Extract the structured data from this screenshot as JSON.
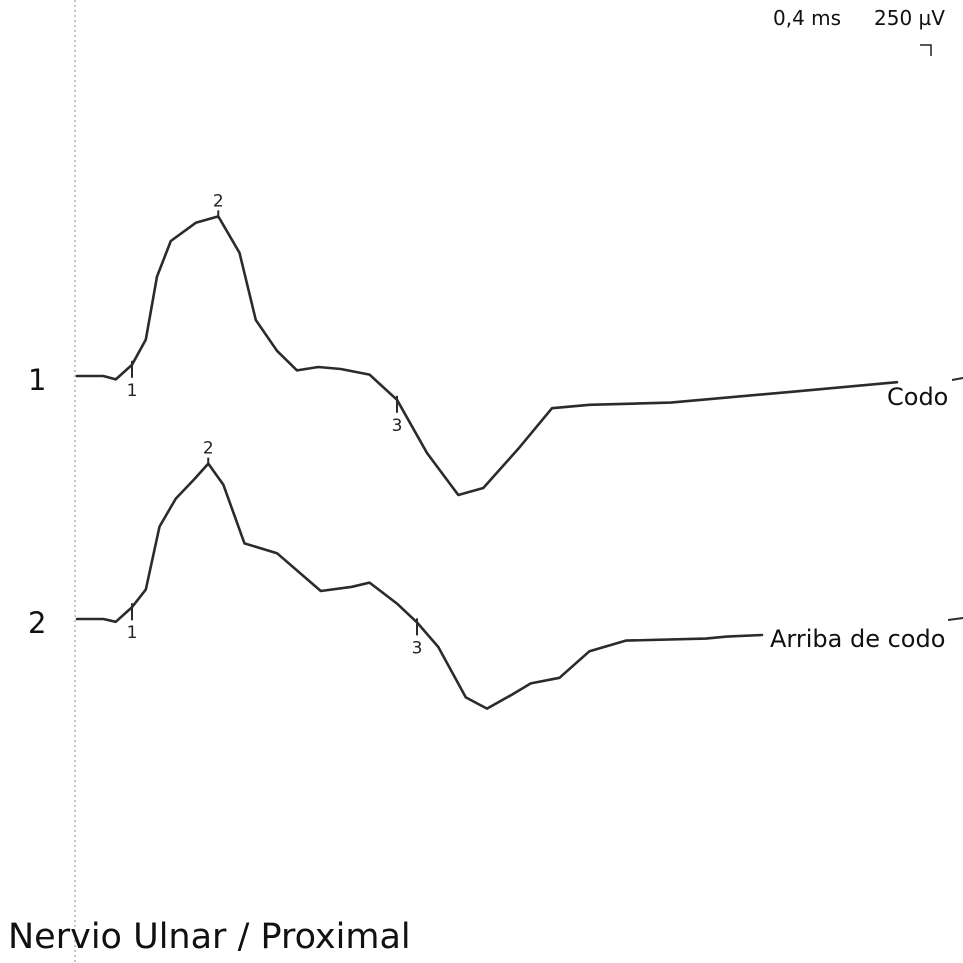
{
  "title": "Nervio Ulnar / Proximal",
  "scale": {
    "time": "0,4 ms",
    "amplitude": "250 µV"
  },
  "chart_data": {
    "type": "line",
    "title": "Nervio Ulnar / Proximal",
    "xlabel": "",
    "ylabel": "",
    "grid": false,
    "x_unit": "ms",
    "y_unit": "µV",
    "ms_per_division": 0.4,
    "uV_per_division": 250,
    "series": [
      {
        "number": "1",
        "name": "Codo",
        "points": [
          [
            0.0,
            0
          ],
          [
            0.21,
            0
          ],
          [
            0.31,
            12
          ],
          [
            0.44,
            -40
          ],
          [
            0.55,
            -130
          ],
          [
            0.64,
            -355
          ],
          [
            0.75,
            -482
          ],
          [
            0.95,
            -547
          ],
          [
            1.13,
            -570
          ],
          [
            1.3,
            -440
          ],
          [
            1.43,
            -200
          ],
          [
            1.6,
            -90
          ],
          [
            1.76,
            -20
          ],
          [
            1.93,
            -32
          ],
          [
            2.11,
            -25
          ],
          [
            2.34,
            -5
          ],
          [
            2.56,
            85
          ],
          [
            2.8,
            275
          ],
          [
            3.05,
            425
          ],
          [
            3.25,
            400
          ],
          [
            3.53,
            260
          ],
          [
            3.8,
            115
          ],
          [
            4.1,
            103
          ],
          [
            4.75,
            95
          ],
          [
            5.75,
            55
          ],
          [
            6.56,
            22
          ]
        ],
        "markers": [
          {
            "label": "1",
            "x": 0.44,
            "y": -40
          },
          {
            "label": "2",
            "x": 1.13,
            "y": -570
          },
          {
            "label": "3",
            "x": 2.56,
            "y": 85
          }
        ]
      },
      {
        "number": "2",
        "name": "Arriba de codo",
        "points": [
          [
            0.0,
            0
          ],
          [
            0.21,
            0
          ],
          [
            0.31,
            10
          ],
          [
            0.44,
            -42
          ],
          [
            0.55,
            -105
          ],
          [
            0.66,
            -330
          ],
          [
            0.79,
            -430
          ],
          [
            0.94,
            -500
          ],
          [
            1.05,
            -555
          ],
          [
            1.17,
            -480
          ],
          [
            1.34,
            -270
          ],
          [
            1.6,
            -235
          ],
          [
            1.95,
            -100
          ],
          [
            2.2,
            -115
          ],
          [
            2.34,
            -130
          ],
          [
            2.56,
            -55
          ],
          [
            2.72,
            12
          ],
          [
            2.89,
            100
          ],
          [
            3.11,
            280
          ],
          [
            3.28,
            320
          ],
          [
            3.48,
            270
          ],
          [
            3.63,
            230
          ],
          [
            3.86,
            210
          ],
          [
            4.1,
            115
          ],
          [
            4.39,
            77
          ],
          [
            5.03,
            70
          ],
          [
            5.2,
            63
          ],
          [
            5.48,
            57
          ]
        ],
        "markers": [
          {
            "label": "1",
            "x": 0.44,
            "y": -42
          },
          {
            "label": "2",
            "x": 1.05,
            "y": -555
          },
          {
            "label": "3",
            "x": 2.72,
            "y": 12
          }
        ]
      }
    ]
  }
}
